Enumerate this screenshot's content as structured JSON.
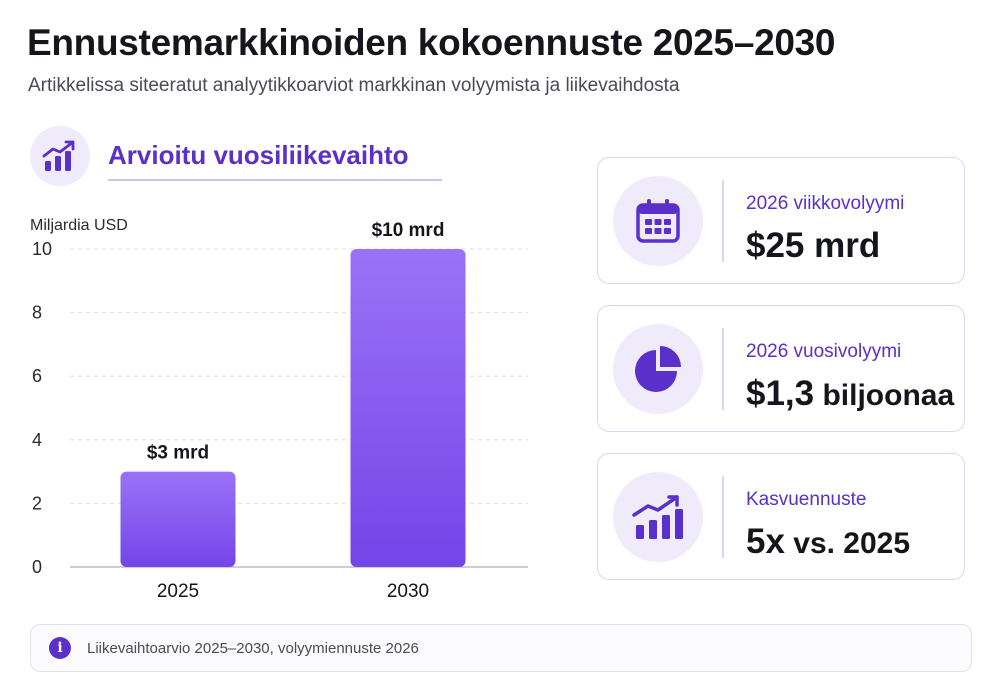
{
  "header": {
    "title": "Ennustemarkkinoiden kokoennuste 2025–2030",
    "subtitle": "Artikkelissa siteeratut analyytikkoarviot markkinan volyymista ja liikevaihdosta"
  },
  "section": {
    "title": "Arvioitu vuosiliikevaihto",
    "icon": "bar-chart-trend-icon"
  },
  "chart_data": {
    "type": "bar",
    "title": "Arvioitu vuosiliikevaihto",
    "ylabel": "Miljardia USD",
    "xlabel": "",
    "categories": [
      "2025",
      "2030"
    ],
    "values": [
      3,
      10
    ],
    "data_labels": [
      "$3 mrd",
      "$10 mrd"
    ],
    "ylim": [
      0,
      10
    ],
    "yticks": [
      0,
      2,
      4,
      6,
      8,
      10
    ],
    "grid": true,
    "bar_color_top": "#9a72f7",
    "bar_color_bottom": "#7445e8"
  },
  "cards": [
    {
      "label": "2026 viikkovolyymi",
      "value_main": "$25 mrd",
      "value_suffix": "",
      "icon": "calendar-icon"
    },
    {
      "label": "2026 vuosivolyymi",
      "value_main": "$1,3",
      "value_suffix": " biljoonaa",
      "icon": "pie-chart-icon"
    },
    {
      "label": "Kasvuennuste",
      "value_main": "5x",
      "value_suffix": " vs. 2025",
      "icon": "growth-chart-icon"
    }
  ],
  "footer": {
    "icon": "info-icon",
    "icon_glyph": "i",
    "text": "Liikevaihtoarvio 2025–2030, volyymiennuste 2026"
  },
  "colors": {
    "accent": "#5b2fc9",
    "accent_light": "#efebfb",
    "text": "#15151c",
    "muted": "#4a4a58"
  }
}
